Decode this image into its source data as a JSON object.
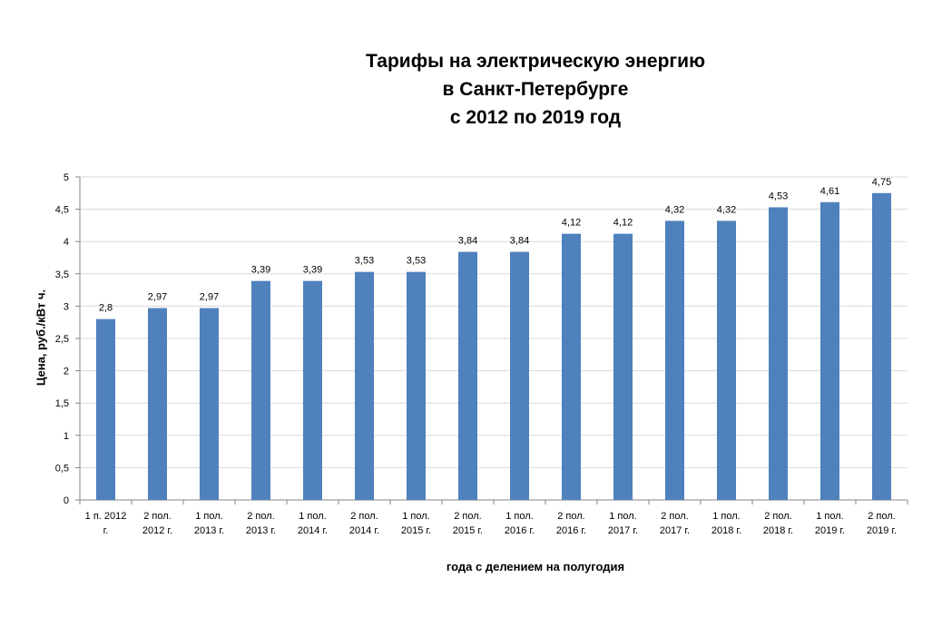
{
  "chart_data": {
    "type": "bar",
    "title": [
      "Тарифы на электрическую энергию",
      "в Санкт-Петербурге",
      "с 2012 по 2019 год"
    ],
    "xlabel": "года с делением на полугодия",
    "ylabel": "Цена, руб./кВт ч.",
    "ylim": [
      0,
      5
    ],
    "yticks": [
      "0",
      "0,5",
      "1",
      "1,5",
      "2",
      "2,5",
      "3",
      "3,5",
      "4",
      "4,5",
      "5"
    ],
    "grid": true,
    "bar_color": "#4F81BD",
    "categories": [
      [
        "1 п. 2012",
        "г."
      ],
      [
        "2 пол.",
        "2012 г."
      ],
      [
        "1 пол.",
        "2013 г."
      ],
      [
        "2 пол.",
        "2013 г."
      ],
      [
        "1 пол.",
        "2014 г."
      ],
      [
        "2 пол.",
        "2014 г."
      ],
      [
        "1 пол.",
        "2015 г."
      ],
      [
        "2 пол.",
        "2015 г."
      ],
      [
        "1 пол.",
        "2016 г."
      ],
      [
        "2 пол.",
        "2016 г."
      ],
      [
        "1 пол.",
        "2017 г."
      ],
      [
        "2 пол.",
        "2017 г."
      ],
      [
        "1 пол.",
        "2018 г."
      ],
      [
        "2 пол.",
        "2018 г."
      ],
      [
        "1 пол.",
        "2019 г."
      ],
      [
        "2 пол.",
        "2019 г."
      ]
    ],
    "values": [
      2.8,
      2.97,
      2.97,
      3.39,
      3.39,
      3.53,
      3.53,
      3.84,
      3.84,
      4.12,
      4.12,
      4.32,
      4.32,
      4.53,
      4.61,
      4.75
    ],
    "value_labels": [
      "2,8",
      "2,97",
      "2,97",
      "3,39",
      "3,39",
      "3,53",
      "3,53",
      "3,84",
      "3,84",
      "4,12",
      "4,12",
      "4,32",
      "4,32",
      "4,53",
      "4,61",
      "4,75"
    ]
  }
}
